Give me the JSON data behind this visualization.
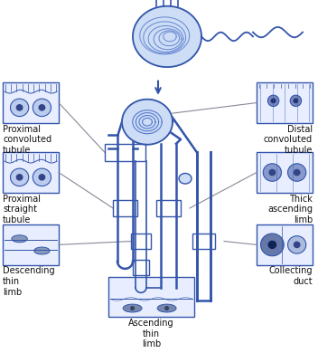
{
  "line_color": "#3355aa",
  "line_color_light": "#5577cc",
  "text_color": "#111111",
  "labels": {
    "proximal_convoluted": "Proximal\nconvoluted\ntubule",
    "proximal_straight": "Proximal\nstraight\ntubule",
    "descending_thin": "Descending\nthin\nlimb",
    "ascending_thin": "Ascending\nthin\nlimb",
    "thick_ascending": "Thick\nascending\nlimb",
    "collecting_duct": "Collecting\nduct",
    "distal_convoluted": "Distal\nconvoluted\ntubule"
  }
}
